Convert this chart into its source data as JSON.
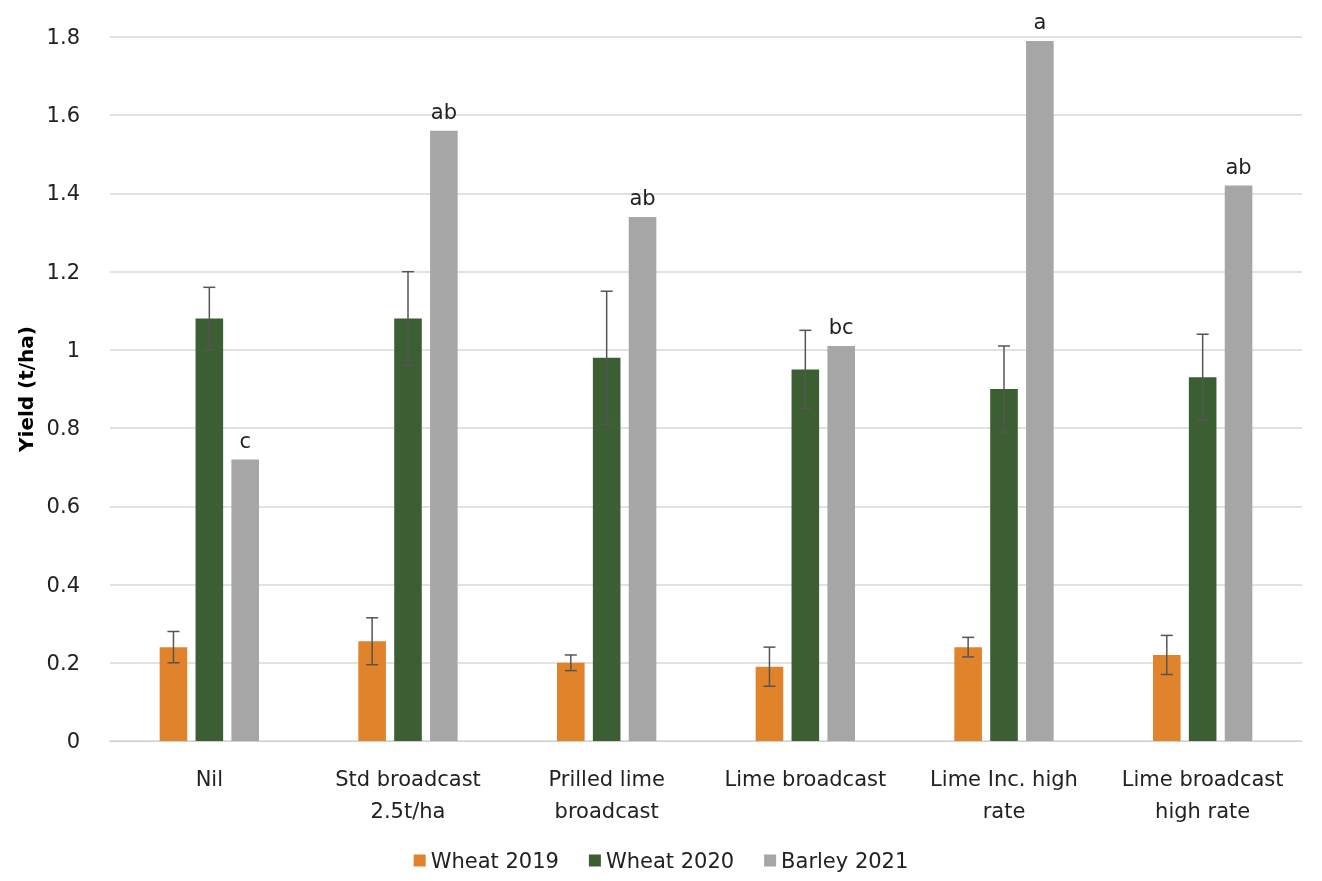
{
  "chart_data": {
    "type": "bar",
    "ylabel": "Yield (t/ha)",
    "categories": [
      "Nil",
      "Std broadcast\n2.5t/ha",
      "Prilled lime\nbroadcast",
      "Lime broadcast",
      "Lime Inc. high\nrate",
      "Lime broadcast\nhigh rate"
    ],
    "series": [
      {
        "name": "Wheat 2019",
        "color": "#e0832a",
        "values": [
          0.24,
          0.255,
          0.2,
          0.19,
          0.24,
          0.22
        ],
        "errors": [
          0.04,
          0.06,
          0.02,
          0.05,
          0.025,
          0.05
        ]
      },
      {
        "name": "Wheat 2020",
        "color": "#3b5f32",
        "values": [
          1.08,
          1.08,
          0.98,
          0.95,
          0.9,
          0.93
        ],
        "errors": [
          0.08,
          0.12,
          0.17,
          0.1,
          0.11,
          0.11
        ]
      },
      {
        "name": "Barley 2021",
        "color": "#a6a6a6",
        "values": [
          0.72,
          1.56,
          1.34,
          1.01,
          1.79,
          1.42
        ],
        "value_labels": [
          "c",
          "ab",
          "ab",
          "bc",
          "a",
          "ab"
        ]
      }
    ],
    "ylim": [
      0,
      1.8
    ],
    "yticks": [
      0,
      0.2,
      0.4,
      0.6,
      0.8,
      1,
      1.2,
      1.4,
      1.6,
      1.8
    ],
    "grid": "y",
    "legend": "bottom"
  }
}
